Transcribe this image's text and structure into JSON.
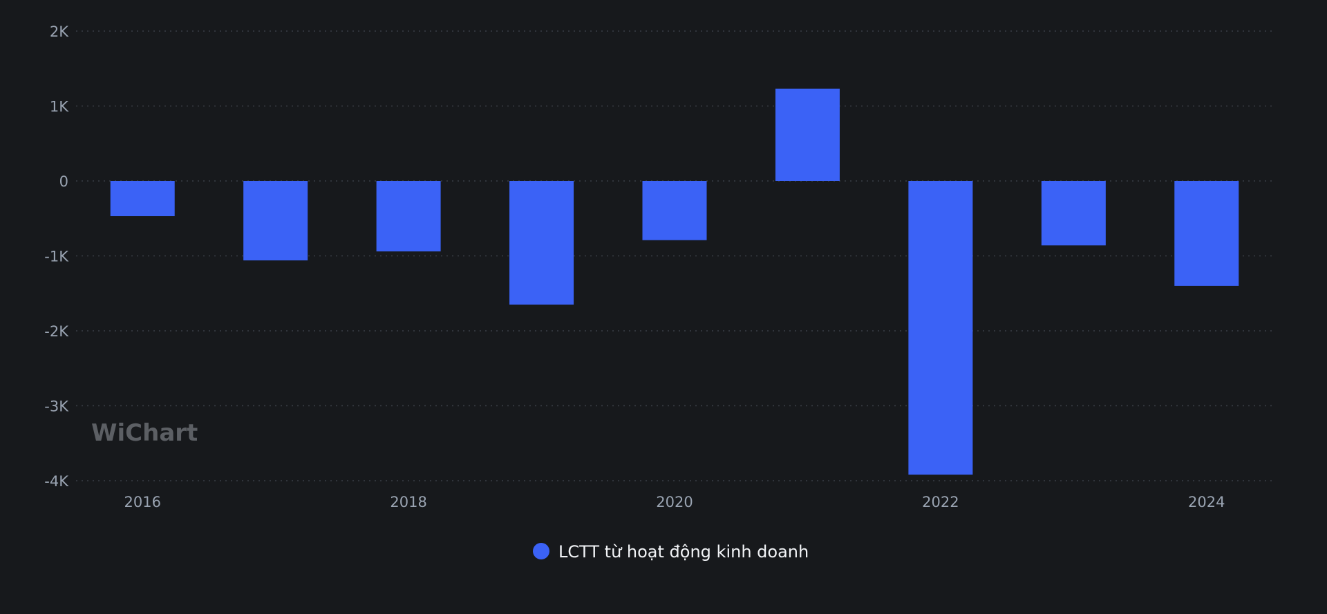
{
  "chart_data": {
    "type": "bar",
    "categories": [
      "2016",
      "2017",
      "2018",
      "2019",
      "2020",
      "2021",
      "2022",
      "2023",
      "2024"
    ],
    "x_tick_labels": [
      "2016",
      "2018",
      "2020",
      "2022",
      "2024"
    ],
    "series": [
      {
        "name": "LCTT từ hoạt động kinh doanh",
        "color": "#3b62f6",
        "values": [
          -470,
          -1060,
          -940,
          -1650,
          -790,
          1230,
          -3920,
          -860,
          -1400
        ]
      }
    ],
    "y_ticks": [
      2000,
      1000,
      0,
      -1000,
      -2000,
      -3000,
      -4000
    ],
    "y_tick_labels": [
      "2K",
      "1K",
      "0",
      "-1K",
      "-2K",
      "-3K",
      "-4K"
    ],
    "ylim": [
      -4000,
      2000
    ],
    "grid": true,
    "legend_position": "bottom-center"
  },
  "watermark": {
    "text": "WiChart"
  },
  "colors": {
    "background": "#17191c",
    "bar": "#3b62f6",
    "grid": "#3a3f46",
    "tick_text": "#9aa4b2",
    "legend_text": "#f2f4f7"
  }
}
